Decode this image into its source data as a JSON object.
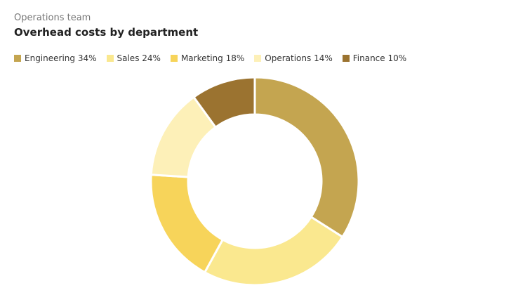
{
  "chart_data": {
    "type": "donut",
    "subtitle": "Operations team",
    "title": "Overhead costs by department",
    "categories": [
      "Engineering",
      "Sales",
      "Marketing",
      "Operations",
      "Finance"
    ],
    "values": [
      34,
      24,
      18,
      14,
      10
    ],
    "value_labels": [
      "34%",
      "24%",
      "18%",
      "14%",
      "10%"
    ],
    "colors": [
      "#c4a550",
      "#fae88f",
      "#f7d45a",
      "#fdf0b8",
      "#9b7330"
    ]
  }
}
